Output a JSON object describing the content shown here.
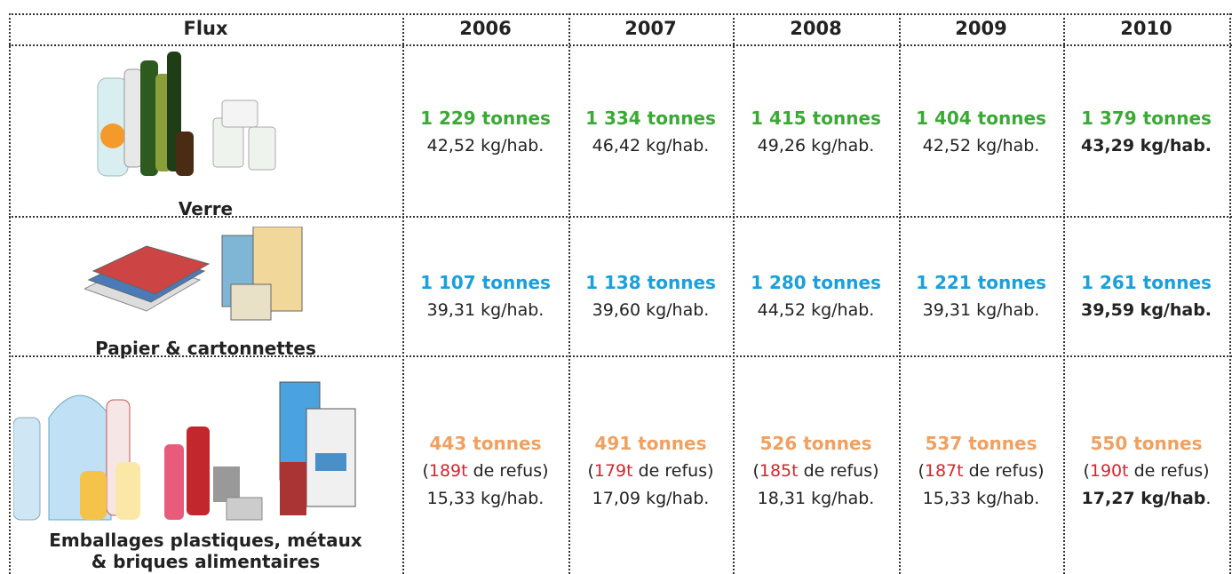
{
  "table": {
    "header": [
      "Flux",
      "2006",
      "2007",
      "2008",
      "2009",
      "2010"
    ],
    "rows": [
      {
        "label": [
          "Verre"
        ],
        "color": "#3aaa35",
        "cells": [
          {
            "tonnes": "1 229 tonnes",
            "kg": "42,52 kg/hab."
          },
          {
            "tonnes": "1 334 tonnes",
            "kg": "46,42 kg/hab."
          },
          {
            "tonnes": "1 415 tonnes",
            "kg": "49,26 kg/hab."
          },
          {
            "tonnes": "1 404 tonnes",
            "kg": "42,52 kg/hab."
          },
          {
            "tonnes": "1 379 tonnes",
            "kg": "43,29 kg/hab."
          }
        ]
      },
      {
        "label": [
          "Papier & cartonnettes"
        ],
        "color": "#1aa0dc",
        "cells": [
          {
            "tonnes": "1 107 tonnes",
            "kg": "39,31 kg/hab."
          },
          {
            "tonnes": "1 138 tonnes",
            "kg": "39,60 kg/hab."
          },
          {
            "tonnes": "1 280 tonnes",
            "kg": "44,52 kg/hab."
          },
          {
            "tonnes": "1 221 tonnes",
            "kg": "39,31 kg/hab."
          },
          {
            "tonnes": "1 261 tonnes",
            "kg": "39,59 kg/hab."
          }
        ]
      },
      {
        "label": [
          "Emballages plastiques, métaux",
          "& briques alimentaires"
        ],
        "color": "#f0a060",
        "cells": [
          {
            "tonnes": "443 tonnes",
            "refus": [
              "(",
              "189t",
              " de refus)"
            ],
            "kg": "15,33 kg/hab."
          },
          {
            "tonnes": "491 tonnes",
            "refus": [
              "(",
              "179t",
              " de refus)"
            ],
            "kg": "17,09 kg/hab."
          },
          {
            "tonnes": "526 tonnes",
            "refus": [
              "(",
              "185t",
              " de refus)"
            ],
            "kg": "18,31 kg/hab."
          },
          {
            "tonnes": "537 tonnes",
            "refus": [
              "(",
              "187t",
              " de refus)"
            ],
            "kg": "15,33 kg/hab."
          },
          {
            "tonnes": "550 tonnes",
            "refus": [
              "(",
              "190t",
              " de refus)"
            ],
            "kg": "17,27 kg/hab",
            "kg_tail": "."
          }
        ]
      }
    ]
  }
}
